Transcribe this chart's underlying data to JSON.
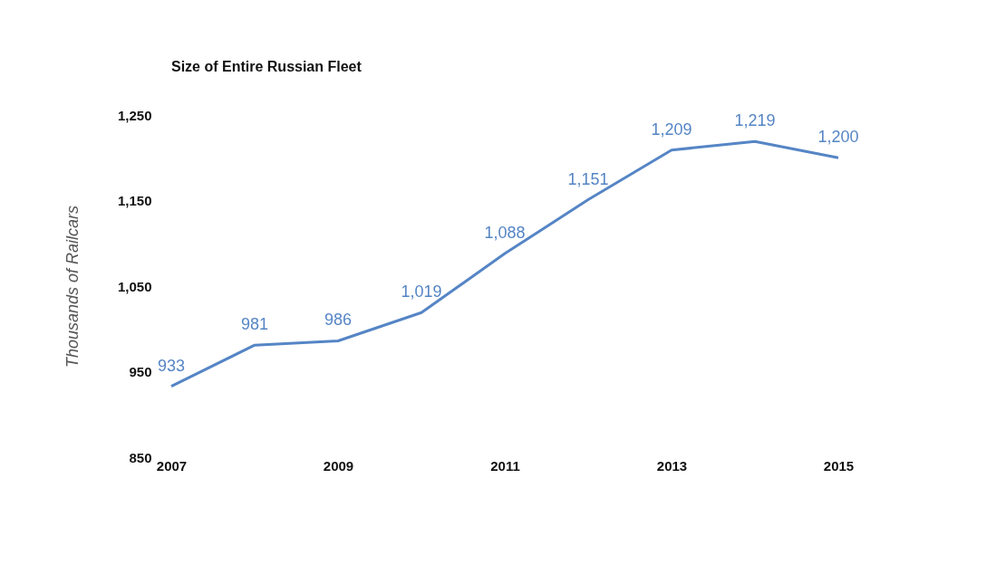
{
  "chart_data": {
    "type": "line",
    "title": "Size of Entire Russian Fleet",
    "ylabel": "Thousands of Railcars",
    "x": [
      2007,
      2008,
      2009,
      2010,
      2011,
      2012,
      2013,
      2014,
      2015
    ],
    "series": [
      {
        "color": "#5585c5",
        "values": [
          933,
          981,
          986,
          1019,
          1088,
          1151,
          1209,
          1219,
          1200
        ],
        "value_labels": [
          "933",
          "981",
          "986",
          "1,019",
          "1,088",
          "1,151",
          "1,209",
          "1,219",
          "1,200"
        ]
      }
    ],
    "xlim": [
      2007,
      2015
    ],
    "xticks": [
      2007,
      2009,
      2011,
      2013,
      2015
    ],
    "ylim": [
      850,
      1250
    ],
    "yticks": [
      850,
      950,
      {
        "value": 1050,
        "label": "1,050"
      },
      {
        "value": 1150,
        "label": "1,150"
      },
      {
        "value": 1250,
        "label": "1,250"
      }
    ],
    "grid": false,
    "marker": "none",
    "line_style": "solid"
  }
}
